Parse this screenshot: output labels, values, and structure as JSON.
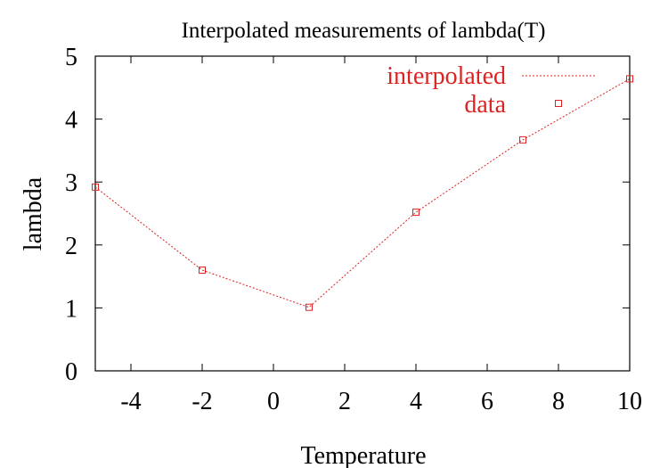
{
  "chart_data": {
    "type": "line",
    "title": "Interpolated measurements of lambda(T)",
    "xlabel": "Temperature",
    "ylabel": "lambda",
    "xlim": [
      -5,
      10
    ],
    "ylim": [
      0,
      5
    ],
    "xticks": [
      -4,
      -2,
      0,
      2,
      4,
      6,
      8,
      10
    ],
    "yticks": [
      0,
      1,
      2,
      3,
      4,
      5
    ],
    "grid": false,
    "legend_position": "top-right",
    "series": [
      {
        "name": "interpolated",
        "style": "dotted-line",
        "color": "#dd2222",
        "x": [
          -5,
          -2,
          1,
          4,
          7,
          10
        ],
        "y": [
          2.92,
          1.6,
          1.01,
          2.52,
          3.67,
          4.64
        ]
      },
      {
        "name": "data",
        "style": "square-markers",
        "color": "#dd2222",
        "x": [
          -5,
          -2,
          1,
          4,
          7,
          10
        ],
        "y": [
          2.92,
          1.6,
          1.01,
          2.52,
          3.67,
          4.64
        ]
      }
    ]
  }
}
